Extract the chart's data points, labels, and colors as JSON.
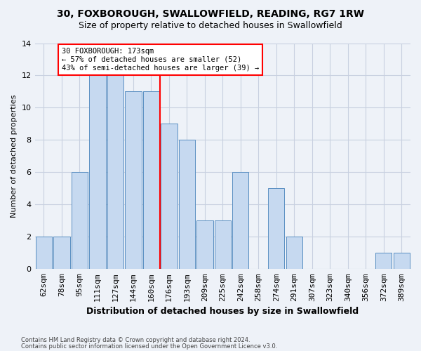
{
  "title1": "30, FOXBOROUGH, SWALLOWFIELD, READING, RG7 1RW",
  "title2": "Size of property relative to detached houses in Swallowfield",
  "xlabel": "Distribution of detached houses by size in Swallowfield",
  "ylabel": "Number of detached properties",
  "footnote1": "Contains HM Land Registry data © Crown copyright and database right 2024.",
  "footnote2": "Contains public sector information licensed under the Open Government Licence v3.0.",
  "categories": [
    "62sqm",
    "78sqm",
    "95sqm",
    "111sqm",
    "127sqm",
    "144sqm",
    "160sqm",
    "176sqm",
    "193sqm",
    "209sqm",
    "225sqm",
    "242sqm",
    "258sqm",
    "274sqm",
    "291sqm",
    "307sqm",
    "323sqm",
    "340sqm",
    "356sqm",
    "372sqm",
    "389sqm"
  ],
  "values": [
    2,
    2,
    6,
    12,
    12,
    11,
    11,
    9,
    8,
    3,
    3,
    6,
    0,
    5,
    2,
    0,
    0,
    0,
    0,
    1,
    1
  ],
  "bar_color": "#c6d9f0",
  "bar_edge_color": "#5a8fc2",
  "grid_color": "#c8d0e0",
  "background_color": "#eef2f8",
  "annotation_text": "30 FOXBOROUGH: 173sqm\n← 57% of detached houses are smaller (52)\n43% of semi-detached houses are larger (39) →",
  "annotation_box_color": "white",
  "annotation_box_edge": "red",
  "red_line_index": 7,
  "ylim": [
    0,
    14
  ],
  "yticks": [
    0,
    2,
    4,
    6,
    8,
    10,
    12,
    14
  ],
  "title1_fontsize": 10,
  "title2_fontsize": 9,
  "xlabel_fontsize": 9,
  "ylabel_fontsize": 8,
  "tick_fontsize": 8,
  "annot_fontsize": 7.5
}
